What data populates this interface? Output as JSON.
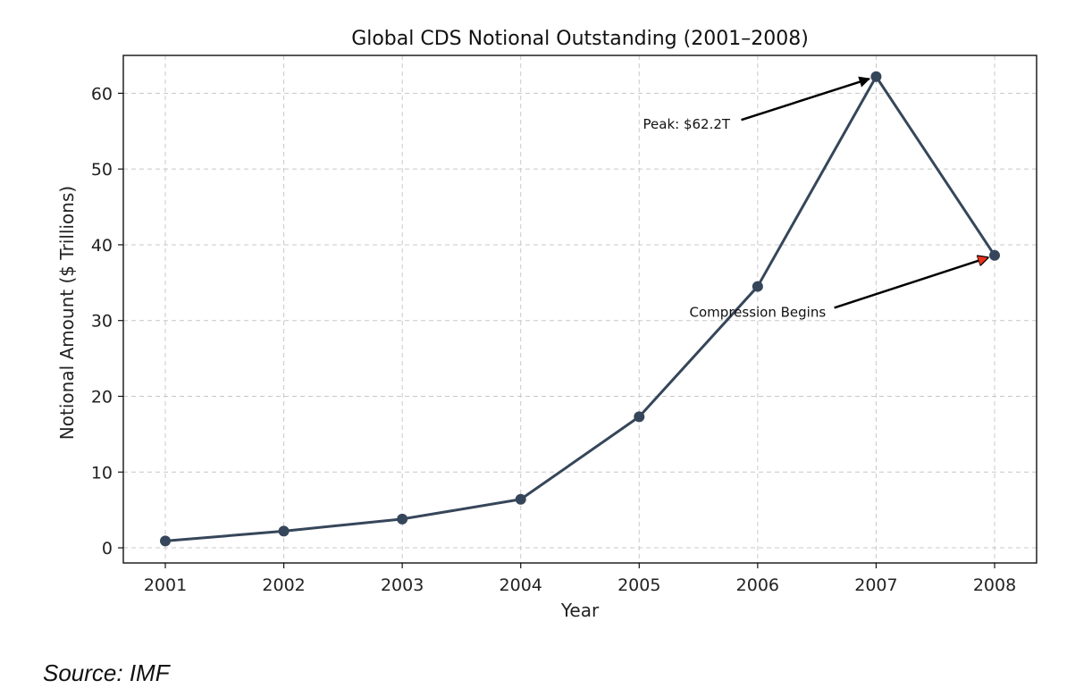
{
  "chart_data": {
    "type": "line",
    "title": "Global CDS Notional Outstanding (2001–2008)",
    "xlabel": "Year",
    "ylabel": "Notional Amount ($ Trillions)",
    "categories": [
      "2001",
      "2002",
      "2003",
      "2004",
      "2005",
      "2006",
      "2007",
      "2008"
    ],
    "values": [
      0.9,
      2.2,
      3.8,
      6.4,
      17.3,
      34.5,
      62.2,
      38.6
    ],
    "ylim": [
      -2,
      65
    ],
    "yticks": [
      0,
      10,
      20,
      30,
      40,
      50,
      60
    ],
    "grid": true,
    "line_color": "#36465a",
    "annotations": [
      {
        "text": "Peak: $62.2T",
        "target_x": "2007",
        "target_y": 62.2,
        "text_x": 2005.4,
        "text_y": 55.3,
        "arrow_color": "#000000"
      },
      {
        "text": "Compression Begins",
        "target_x": "2008",
        "target_y": 38.6,
        "text_x": 2006.0,
        "text_y": 30.5,
        "arrow_color": "#e8321e"
      }
    ]
  },
  "source": "Source: IMF"
}
